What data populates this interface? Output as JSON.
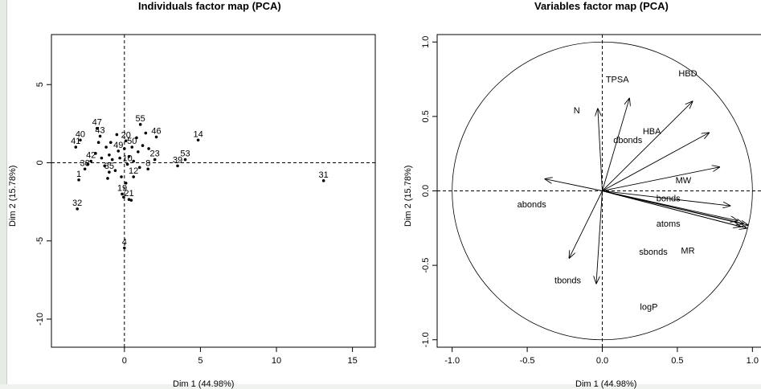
{
  "chart_data": [
    {
      "type": "scatter",
      "title": "Individuals factor map (PCA)",
      "xlabel": "Dim 1 (44.98%)",
      "ylabel": "Dim 2 (15.78%)",
      "xlim": [
        -4.8,
        16.5
      ],
      "ylim": [
        -11.8,
        8.2
      ],
      "xticks": [
        0,
        5,
        10,
        15
      ],
      "yticks": [
        -10,
        -5,
        0,
        5
      ],
      "xtick_labels": [
        "0",
        "5",
        "10",
        "15"
      ],
      "ytick_labels": [
        "-10",
        "-5",
        "0",
        "5"
      ],
      "points": [
        {
          "label": "31",
          "x": 13.1,
          "y": -1.15
        },
        {
          "label": "14",
          "x": 4.85,
          "y": 1.45
        },
        {
          "label": "53",
          "x": 4.0,
          "y": 0.2
        },
        {
          "label": "39",
          "x": 3.5,
          "y": -0.2
        },
        {
          "label": "23",
          "x": 2.0,
          "y": 0.2
        },
        {
          "label": "55",
          "x": 1.05,
          "y": 2.45
        },
        {
          "label": "46",
          "x": 2.1,
          "y": 1.65
        },
        {
          "label": "8",
          "x": 1.55,
          "y": -0.4
        },
        {
          "label": "12",
          "x": 0.6,
          "y": -0.9
        },
        {
          "label": "20",
          "x": 0.1,
          "y": 1.4
        },
        {
          "label": "40",
          "x": -2.9,
          "y": 1.45
        },
        {
          "label": "41",
          "x": -3.2,
          "y": 1.0
        },
        {
          "label": "47",
          "x": -1.8,
          "y": 2.2
        },
        {
          "label": "43",
          "x": -1.6,
          "y": 1.7
        },
        {
          "label": "42",
          "x": -2.2,
          "y": 0.1
        },
        {
          "label": "38",
          "x": -2.6,
          "y": -0.4
        },
        {
          "label": "1",
          "x": -3.0,
          "y": -1.1
        },
        {
          "label": "32",
          "x": -3.1,
          "y": -2.95
        },
        {
          "label": "4",
          "x": 0.0,
          "y": -5.45
        },
        {
          "label": "19",
          "x": -0.15,
          "y": -2.0
        },
        {
          "label": "21",
          "x": 0.3,
          "y": -2.35
        },
        {
          "label": "35",
          "x": -1.0,
          "y": -0.6
        },
        {
          "label": "49",
          "x": -0.4,
          "y": 0.75
        },
        {
          "label": "50",
          "x": 0.5,
          "y": 1.0
        },
        {
          "label": "10",
          "x": 0.2,
          "y": -0.1
        },
        {
          "label": "",
          "x": -1.2,
          "y": 1.0
        },
        {
          "label": "",
          "x": -1.0,
          "y": 0.5
        },
        {
          "label": "",
          "x": -0.8,
          "y": 0.2
        },
        {
          "label": "",
          "x": -1.5,
          "y": 0.3
        },
        {
          "label": "",
          "x": -1.3,
          "y": -0.2
        },
        {
          "label": "",
          "x": -0.6,
          "y": -0.5
        },
        {
          "label": "",
          "x": -0.3,
          "y": 0.3
        },
        {
          "label": "",
          "x": 0.3,
          "y": 0.4
        },
        {
          "label": "",
          "x": 0.6,
          "y": 0.1
        },
        {
          "label": "",
          "x": 0.9,
          "y": 0.7
        },
        {
          "label": "",
          "x": 1.2,
          "y": 1.1
        },
        {
          "label": "",
          "x": 1.4,
          "y": 1.9
        },
        {
          "label": "",
          "x": 0.8,
          "y": 1.6
        },
        {
          "label": "",
          "x": -0.5,
          "y": 1.8
        },
        {
          "label": "",
          "x": -1.9,
          "y": 0.6
        },
        {
          "label": "",
          "x": -2.4,
          "y": -0.1
        },
        {
          "label": "",
          "x": -1.1,
          "y": -1.0
        },
        {
          "label": "",
          "x": -0.2,
          "y": -0.9
        },
        {
          "label": "",
          "x": 0.1,
          "y": -1.3
        },
        {
          "label": "",
          "x": -0.05,
          "y": -2.2
        },
        {
          "label": "",
          "x": 0.45,
          "y": -2.4
        },
        {
          "label": "",
          "x": 1.0,
          "y": -0.3
        },
        {
          "label": "",
          "x": 0.0,
          "y": 0.9
        },
        {
          "label": "",
          "x": -0.9,
          "y": 1.3
        },
        {
          "label": "",
          "x": -1.7,
          "y": 1.3
        },
        {
          "label": "",
          "x": 1.6,
          "y": 0.9
        }
      ]
    },
    {
      "type": "vector",
      "title": "Variables factor map (PCA)",
      "xlabel": "Dim 1 (44.98%)",
      "ylabel": "Dim 2 (15.78%)",
      "xlim": [
        -1.1,
        1.1
      ],
      "ylim": [
        -1.05,
        1.05
      ],
      "xticks": [
        -1.0,
        -0.5,
        0.0,
        0.5,
        1.0
      ],
      "yticks": [
        -1.0,
        -0.5,
        0.0,
        0.5,
        1.0
      ],
      "xtick_labels": [
        "-1.0",
        "-0.5",
        "0.0",
        "0.5",
        "1.0"
      ],
      "ytick_labels": [
        "-1.0",
        "-0.5",
        "0.0",
        "0.5",
        "1.0"
      ],
      "unit_circle": true,
      "vectors": [
        {
          "name": "TPSA",
          "x": 0.18,
          "y": 0.62
        },
        {
          "name": "HBD",
          "x": 0.6,
          "y": 0.6
        },
        {
          "name": "N",
          "x": -0.03,
          "y": 0.55
        },
        {
          "name": "HBA",
          "x": 0.71,
          "y": 0.39
        },
        {
          "name": "dbonds",
          "x": 0.78,
          "y": 0.16
        },
        {
          "name": "MW",
          "x": 0.85,
          "y": -0.1
        },
        {
          "name": "bonds",
          "x": 0.9,
          "y": -0.2
        },
        {
          "name": "atoms",
          "x": 0.92,
          "y": -0.24
        },
        {
          "name": "MR",
          "x": 0.96,
          "y": -0.25
        },
        {
          "name": "sbonds",
          "x": 0.94,
          "y": -0.22
        },
        {
          "name": "logP",
          "x": 0.97,
          "y": -0.23
        },
        {
          "name": "abonds",
          "x": -0.38,
          "y": 0.08
        },
        {
          "name": "tbonds",
          "x": -0.04,
          "y": -0.62
        },
        {
          "name": "",
          "x": -0.22,
          "y": -0.45
        }
      ],
      "labels": [
        {
          "text": "TPSA",
          "x": 0.1,
          "y": 0.73
        },
        {
          "text": "HBD",
          "x": 0.57,
          "y": 0.77
        },
        {
          "text": "N",
          "x": -0.17,
          "y": 0.52
        },
        {
          "text": "HBA",
          "x": 0.33,
          "y": 0.38
        },
        {
          "text": "dbonds",
          "x": 0.17,
          "y": 0.32
        },
        {
          "text": "MW",
          "x": 0.54,
          "y": 0.05
        },
        {
          "text": "bonds",
          "x": 0.44,
          "y": -0.07
        },
        {
          "text": "atoms",
          "x": 0.44,
          "y": -0.24
        },
        {
          "text": "MR",
          "x": 0.57,
          "y": -0.42
        },
        {
          "text": "sbonds",
          "x": 0.34,
          "y": -0.43
        },
        {
          "text": "logP",
          "x": 0.31,
          "y": -0.8
        },
        {
          "text": "abonds",
          "x": -0.47,
          "y": -0.11
        },
        {
          "text": "tbonds",
          "x": -0.23,
          "y": -0.62
        }
      ]
    }
  ]
}
